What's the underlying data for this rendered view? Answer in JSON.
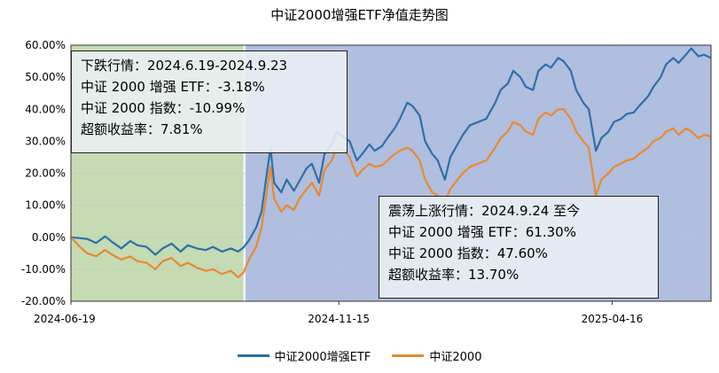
{
  "chart_data": {
    "type": "line",
    "title": "中证2000增强ETF净值走势图",
    "xlabel": "",
    "ylabel": "",
    "x_tick_labels": [
      "2024-06-19",
      "2024-11-15",
      "2025-04-16"
    ],
    "y_tick_labels": [
      "-20.00%",
      "-10.00%",
      "0.00%",
      "10.00%",
      "20.00%",
      "30.00%",
      "40.00%",
      "50.00%",
      "60.00%"
    ],
    "ylim": [
      -20,
      60
    ],
    "grid": true,
    "legend_position": "bottom",
    "x_start": "2024-06-19",
    "x_end": "2025-06-10",
    "shaded_regions": [
      {
        "from": "2024-06-19",
        "to": "2024-09-23",
        "color": "#c4dbb4"
      },
      {
        "from": "2024-09-24",
        "to": "2025-06-10",
        "color": "#b0bedf"
      }
    ],
    "series": [
      {
        "name": "中证2000增强ETF",
        "color": "#2f6fa7",
        "points": [
          [
            "2024-06-19",
            0
          ],
          [
            "2024-06-24",
            -0.3
          ],
          [
            "2024-06-28",
            -0.5
          ],
          [
            "2024-07-03",
            -1.8
          ],
          [
            "2024-07-08",
            0.3
          ],
          [
            "2024-07-12",
            -1.5
          ],
          [
            "2024-07-17",
            -3.5
          ],
          [
            "2024-07-22",
            -1.2
          ],
          [
            "2024-07-26",
            -2.5
          ],
          [
            "2024-07-31",
            -3.0
          ],
          [
            "2024-08-05",
            -5.5
          ],
          [
            "2024-08-09",
            -3.5
          ],
          [
            "2024-08-14",
            -2.0
          ],
          [
            "2024-08-19",
            -4.5
          ],
          [
            "2024-08-23",
            -2.5
          ],
          [
            "2024-08-28",
            -3.5
          ],
          [
            "2024-09-02",
            -4.0
          ],
          [
            "2024-09-06",
            -3.0
          ],
          [
            "2024-09-11",
            -4.5
          ],
          [
            "2024-09-16",
            -3.5
          ],
          [
            "2024-09-20",
            -4.5
          ],
          [
            "2024-09-23",
            -3.18
          ],
          [
            "2024-09-26",
            -1.0
          ],
          [
            "2024-09-30",
            3.0
          ],
          [
            "2024-10-03",
            8.0
          ],
          [
            "2024-10-08",
            28.0
          ],
          [
            "2024-10-10",
            17.0
          ],
          [
            "2024-10-14",
            14.0
          ],
          [
            "2024-10-17",
            18.0
          ],
          [
            "2024-10-21",
            14.5
          ],
          [
            "2024-10-24",
            17.5
          ],
          [
            "2024-10-28",
            21.5
          ],
          [
            "2024-10-31",
            23.0
          ],
          [
            "2024-11-04",
            17.0
          ],
          [
            "2024-11-07",
            26.0
          ],
          [
            "2024-11-11",
            29.0
          ],
          [
            "2024-11-14",
            33.0
          ],
          [
            "2024-11-18",
            31.0
          ],
          [
            "2024-11-21",
            30.0
          ],
          [
            "2024-11-25",
            24.0
          ],
          [
            "2024-11-28",
            26.0
          ],
          [
            "2024-12-02",
            29.0
          ],
          [
            "2024-12-05",
            27.0
          ],
          [
            "2024-12-09",
            28.5
          ],
          [
            "2024-12-12",
            31.0
          ],
          [
            "2024-12-16",
            34.0
          ],
          [
            "2024-12-19",
            37.0
          ],
          [
            "2024-12-23",
            42.0
          ],
          [
            "2024-12-26",
            41.0
          ],
          [
            "2024-12-30",
            38.0
          ],
          [
            "2025-01-02",
            30.0
          ],
          [
            "2025-01-06",
            26.0
          ],
          [
            "2025-01-09",
            24.0
          ],
          [
            "2025-01-13",
            18.0
          ],
          [
            "2025-01-16",
            25.0
          ],
          [
            "2025-01-20",
            29.0
          ],
          [
            "2025-01-23",
            32.0
          ],
          [
            "2025-01-27",
            35.0
          ],
          [
            "2025-02-05",
            37.0
          ],
          [
            "2025-02-10",
            42.0
          ],
          [
            "2025-02-13",
            46.0
          ],
          [
            "2025-02-17",
            48.0
          ],
          [
            "2025-02-20",
            52.0
          ],
          [
            "2025-02-24",
            50.0
          ],
          [
            "2025-02-27",
            47.0
          ],
          [
            "2025-03-03",
            46.0
          ],
          [
            "2025-03-06",
            52.0
          ],
          [
            "2025-03-10",
            54.0
          ],
          [
            "2025-03-13",
            53.0
          ],
          [
            "2025-03-17",
            56.0
          ],
          [
            "2025-03-20",
            55.0
          ],
          [
            "2025-03-24",
            52.0
          ],
          [
            "2025-03-27",
            46.0
          ],
          [
            "2025-03-31",
            42.0
          ],
          [
            "2025-04-03",
            40.0
          ],
          [
            "2025-04-07",
            27.0
          ],
          [
            "2025-04-10",
            31.0
          ],
          [
            "2025-04-14",
            33.0
          ],
          [
            "2025-04-17",
            36.0
          ],
          [
            "2025-04-21",
            37.0
          ],
          [
            "2025-04-24",
            38.5
          ],
          [
            "2025-04-28",
            39.0
          ],
          [
            "2025-05-01",
            41.0
          ],
          [
            "2025-05-06",
            44.0
          ],
          [
            "2025-05-09",
            47.0
          ],
          [
            "2025-05-13",
            50.0
          ],
          [
            "2025-05-16",
            54.0
          ],
          [
            "2025-05-20",
            56.0
          ],
          [
            "2025-05-23",
            54.5
          ],
          [
            "2025-05-27",
            57.0
          ],
          [
            "2025-05-30",
            59.0
          ],
          [
            "2025-06-03",
            56.5
          ],
          [
            "2025-06-06",
            57.0
          ],
          [
            "2025-06-10",
            56.0
          ]
        ]
      },
      {
        "name": "中证2000",
        "color": "#e88a2e",
        "points": [
          [
            "2024-06-19",
            0
          ],
          [
            "2024-06-24",
            -3.0
          ],
          [
            "2024-06-28",
            -5.0
          ],
          [
            "2024-07-03",
            -6.0
          ],
          [
            "2024-07-08",
            -4.0
          ],
          [
            "2024-07-12",
            -5.5
          ],
          [
            "2024-07-17",
            -7.0
          ],
          [
            "2024-07-22",
            -6.0
          ],
          [
            "2024-07-26",
            -7.5
          ],
          [
            "2024-07-31",
            -8.0
          ],
          [
            "2024-08-05",
            -10.0
          ],
          [
            "2024-08-09",
            -7.5
          ],
          [
            "2024-08-14",
            -6.5
          ],
          [
            "2024-08-19",
            -9.0
          ],
          [
            "2024-08-23",
            -8.0
          ],
          [
            "2024-08-28",
            -9.5
          ],
          [
            "2024-09-02",
            -10.5
          ],
          [
            "2024-09-06",
            -10.0
          ],
          [
            "2024-09-11",
            -11.5
          ],
          [
            "2024-09-16",
            -10.5
          ],
          [
            "2024-09-20",
            -12.5
          ],
          [
            "2024-09-23",
            -10.99
          ],
          [
            "2024-09-26",
            -7.0
          ],
          [
            "2024-09-30",
            -3.0
          ],
          [
            "2024-10-03",
            3.0
          ],
          [
            "2024-10-08",
            22.0
          ],
          [
            "2024-10-10",
            12.0
          ],
          [
            "2024-10-14",
            8.0
          ],
          [
            "2024-10-17",
            10.0
          ],
          [
            "2024-10-21",
            8.5
          ],
          [
            "2024-10-24",
            12.0
          ],
          [
            "2024-10-28",
            15.0
          ],
          [
            "2024-10-31",
            17.0
          ],
          [
            "2024-11-04",
            13.0
          ],
          [
            "2024-11-07",
            21.0
          ],
          [
            "2024-11-11",
            24.0
          ],
          [
            "2024-11-14",
            28.0
          ],
          [
            "2024-11-18",
            27.0
          ],
          [
            "2024-11-21",
            25.0
          ],
          [
            "2024-11-25",
            19.0
          ],
          [
            "2024-11-28",
            21.0
          ],
          [
            "2024-12-02",
            23.0
          ],
          [
            "2024-12-05",
            22.0
          ],
          [
            "2024-12-09",
            22.5
          ],
          [
            "2024-12-12",
            24.0
          ],
          [
            "2024-12-16",
            26.0
          ],
          [
            "2024-12-19",
            27.0
          ],
          [
            "2024-12-23",
            28.0
          ],
          [
            "2024-12-26",
            27.0
          ],
          [
            "2024-12-30",
            24.0
          ],
          [
            "2025-01-02",
            18.0
          ],
          [
            "2025-01-06",
            14.0
          ],
          [
            "2025-01-09",
            13.0
          ],
          [
            "2025-01-13",
            11.0
          ],
          [
            "2025-01-16",
            15.0
          ],
          [
            "2025-01-20",
            18.0
          ],
          [
            "2025-01-23",
            20.0
          ],
          [
            "2025-01-27",
            22.0
          ],
          [
            "2025-02-05",
            24.0
          ],
          [
            "2025-02-10",
            28.0
          ],
          [
            "2025-02-13",
            31.0
          ],
          [
            "2025-02-17",
            33.0
          ],
          [
            "2025-02-20",
            36.0
          ],
          [
            "2025-02-24",
            35.0
          ],
          [
            "2025-02-27",
            33.0
          ],
          [
            "2025-03-03",
            32.0
          ],
          [
            "2025-03-06",
            37.0
          ],
          [
            "2025-03-10",
            39.0
          ],
          [
            "2025-03-13",
            38.0
          ],
          [
            "2025-03-17",
            40.0
          ],
          [
            "2025-03-20",
            40.0
          ],
          [
            "2025-03-24",
            37.0
          ],
          [
            "2025-03-27",
            33.0
          ],
          [
            "2025-03-31",
            30.0
          ],
          [
            "2025-04-03",
            28.0
          ],
          [
            "2025-04-07",
            13.0
          ],
          [
            "2025-04-10",
            18.0
          ],
          [
            "2025-04-14",
            20.0
          ],
          [
            "2025-04-17",
            22.0
          ],
          [
            "2025-04-21",
            23.0
          ],
          [
            "2025-04-24",
            24.0
          ],
          [
            "2025-04-28",
            24.5
          ],
          [
            "2025-05-01",
            26.0
          ],
          [
            "2025-05-06",
            28.0
          ],
          [
            "2025-05-09",
            30.0
          ],
          [
            "2025-05-13",
            31.0
          ],
          [
            "2025-05-16",
            33.0
          ],
          [
            "2025-05-20",
            34.0
          ],
          [
            "2025-05-23",
            32.0
          ],
          [
            "2025-05-27",
            34.0
          ],
          [
            "2025-05-30",
            33.0
          ],
          [
            "2025-06-03",
            31.0
          ],
          [
            "2025-06-06",
            32.0
          ],
          [
            "2025-06-10",
            31.5
          ]
        ]
      }
    ],
    "annotations": [
      {
        "lines": [
          "下跌行情：2024.6.19-2024.9.23",
          "中证 2000 增强 ETF：-3.18%",
          "中证 2000 指数：-10.99%",
          "超额收益率：7.81%"
        ]
      },
      {
        "lines": [
          "震荡上涨行情：2024.9.24 至今",
          "中证 2000 增强 ETF：61.30%",
          "中证 2000 指数：47.60%",
          "超额收益率：13.70%"
        ]
      }
    ]
  }
}
